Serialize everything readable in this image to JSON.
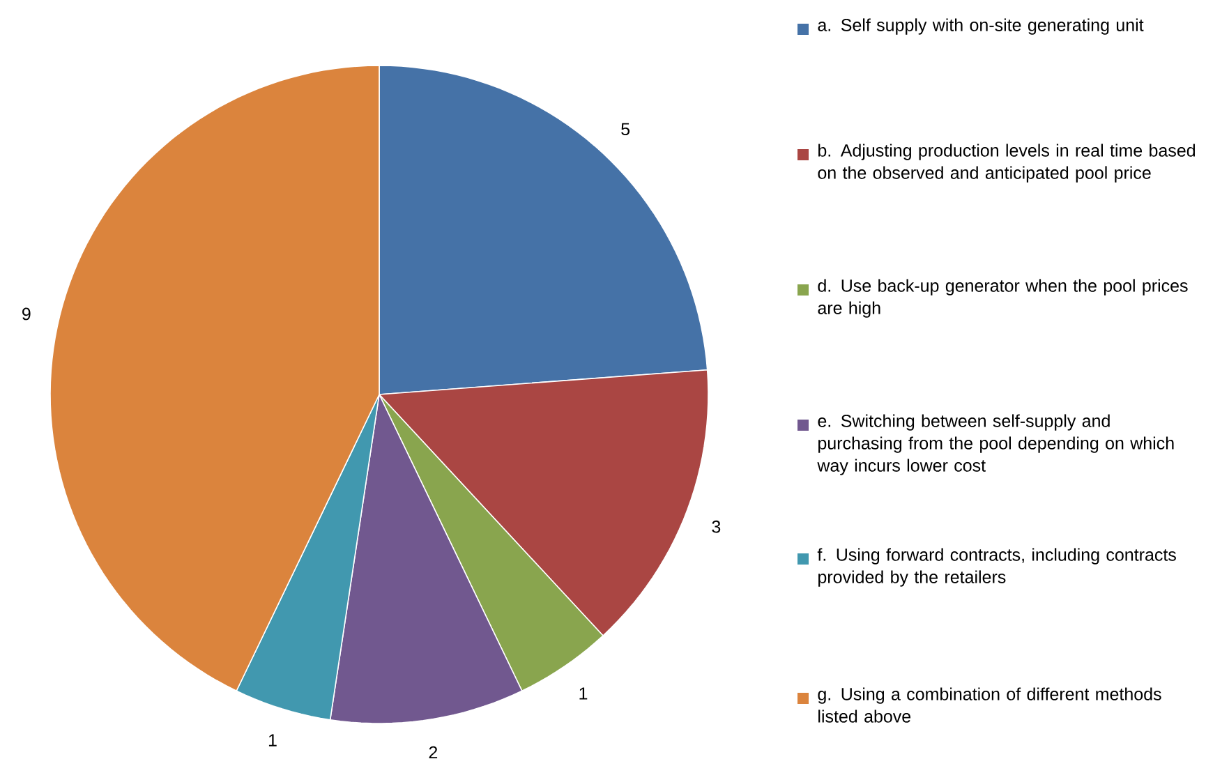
{
  "chart_data": {
    "type": "pie",
    "categories": [
      "a. Self supply with on-site generating unit",
      "b. Adjusting production levels in real time based on the observed and anticipated pool price",
      "d. Use back-up generator when the pool prices are high",
      "e. Switching between self-supply and purchasing from the pool depending on which way incurs lower cost",
      "f. Using forward contracts, including contracts provided by the retailers",
      "g. Using a combination of different methods listed above"
    ],
    "values": [
      5,
      3,
      1,
      2,
      1,
      9
    ],
    "colors": [
      "#4572a7",
      "#aa4643",
      "#89a54e",
      "#71588f",
      "#4198af",
      "#db843d"
    ],
    "data_labels": true,
    "legend": "right"
  }
}
